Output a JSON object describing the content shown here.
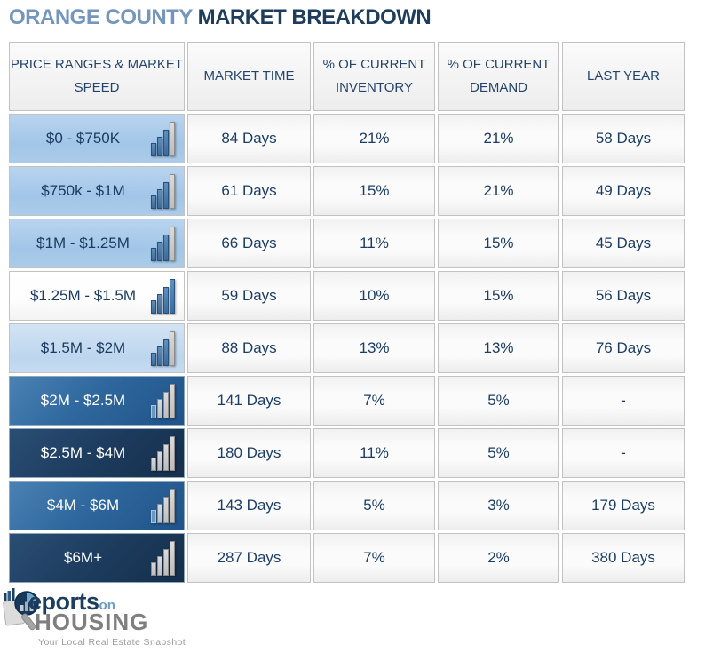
{
  "title": {
    "prefix": "ORANGE COUNTY",
    "suffix": " MARKET BREAKDOWN"
  },
  "table": {
    "headers": [
      "PRICE RANGES & MARKET SPEED",
      "MARKET TIME",
      "% OF CURRENT INVENTORY",
      "% OF CURRENT DEMAND",
      "LAST YEAR"
    ],
    "rows": [
      {
        "price_range": "$0 - $750K",
        "market_time": "84 Days",
        "inventory": "21%",
        "demand": "21%",
        "last_year": "58 Days",
        "speed_bars": [
          "blue",
          "blue",
          "blue",
          "gray"
        ]
      },
      {
        "price_range": "$750k - $1M",
        "market_time": "61 Days",
        "inventory": "15%",
        "demand": "21%",
        "last_year": "49 Days",
        "speed_bars": [
          "blue",
          "blue",
          "blue",
          "gray"
        ]
      },
      {
        "price_range": "$1M - $1.25M",
        "market_time": "66 Days",
        "inventory": "11%",
        "demand": "15%",
        "last_year": "45 Days",
        "speed_bars": [
          "blue",
          "blue",
          "blue",
          "gray"
        ]
      },
      {
        "price_range": "$1.25M - $1.5M",
        "market_time": "59 Days",
        "inventory": "10%",
        "demand": "15%",
        "last_year": "56 Days",
        "speed_bars": [
          "blue",
          "blue",
          "blue",
          "blue"
        ]
      },
      {
        "price_range": "$1.5M - $2M",
        "market_time": "88 Days",
        "inventory": "13%",
        "demand": "13%",
        "last_year": "76 Days",
        "speed_bars": [
          "blue",
          "blue",
          "blue",
          "gray"
        ]
      },
      {
        "price_range": "$2M - $2.5M",
        "market_time": "141 Days",
        "inventory": "7%",
        "demand": "5%",
        "last_year": "-",
        "speed_bars": [
          "lightblue",
          "gray",
          "gray",
          "gray"
        ]
      },
      {
        "price_range": "$2.5M - $4M",
        "market_time": "180 Days",
        "inventory": "11%",
        "demand": "5%",
        "last_year": "-",
        "speed_bars": [
          "gray",
          "gray",
          "gray",
          "gray"
        ]
      },
      {
        "price_range": "$4M - $6M",
        "market_time": "143 Days",
        "inventory": "5%",
        "demand": "3%",
        "last_year": "179 Days",
        "speed_bars": [
          "lightblue",
          "gray",
          "gray",
          "gray"
        ]
      },
      {
        "price_range": "$6M+",
        "market_time": "287 Days",
        "inventory": "7%",
        "demand": "2%",
        "last_year": "380 Days",
        "speed_bars": [
          "gray",
          "gray",
          "gray",
          "gray"
        ]
      }
    ]
  },
  "logo": {
    "brand_reports": "eports",
    "brand_on": "on",
    "brand_housing": "HOUSING",
    "tagline": "Your Local Real Estate Snapshot"
  },
  "colors": {
    "title_accent": "#7496bd",
    "title_dark": "#1e3d5c",
    "row_light_blue": "#a2c6e8",
    "row_pale_blue": "#bdd6ee",
    "row_medium_blue": "#2f689e",
    "row_dark_navy": "#1d3c5e",
    "cell_text_navy": "#1c3d66",
    "bar_blue": "#3a6b9d",
    "bar_gray": "#bdbdbd"
  }
}
